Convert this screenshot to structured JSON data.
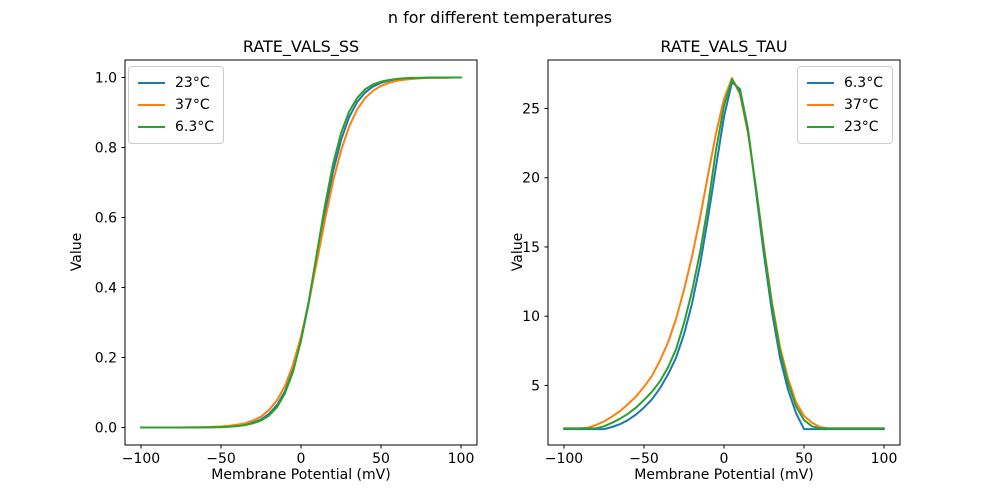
{
  "figure": {
    "suptitle": "n for different temperatures",
    "background": "#ffffff"
  },
  "palette": {
    "blue": "#1f77b4",
    "orange": "#ff7f0e",
    "green": "#2ca02c",
    "axis": "#000000",
    "legend_border": "#cccccc"
  },
  "chart_data": [
    {
      "type": "line",
      "title": "RATE_VALS_SS",
      "xlabel": "Membrane Potential (mV)",
      "ylabel": "Value",
      "xlim": [
        -110,
        110
      ],
      "ylim": [
        -0.05,
        1.05
      ],
      "xticks": [
        -100,
        -50,
        0,
        50,
        100
      ],
      "xtick_labels": [
        "−100",
        "−50",
        "0",
        "50",
        "100"
      ],
      "yticks": [
        0.0,
        0.2,
        0.4,
        0.6,
        0.8,
        1.0
      ],
      "ytick_labels": [
        "0.0",
        "0.2",
        "0.4",
        "0.6",
        "0.8",
        "1.0"
      ],
      "grid": false,
      "legend_position": "upper-left",
      "x": [
        -100,
        -95,
        -90,
        -85,
        -80,
        -75,
        -70,
        -65,
        -60,
        -55,
        -50,
        -45,
        -40,
        -35,
        -30,
        -25,
        -20,
        -15,
        -10,
        -5,
        0,
        5,
        10,
        15,
        20,
        25,
        30,
        35,
        40,
        45,
        50,
        55,
        60,
        65,
        70,
        75,
        80,
        85,
        90,
        95,
        100
      ],
      "series": [
        {
          "name": "23°C",
          "color": "#1f77b4",
          "values": [
            0.0,
            0.0,
            0.0,
            0.0,
            0.0,
            0.0,
            0.0,
            0.0,
            0.001,
            0.001,
            0.002,
            0.003,
            0.005,
            0.008,
            0.014,
            0.023,
            0.039,
            0.064,
            0.104,
            0.164,
            0.249,
            0.359,
            0.487,
            0.616,
            0.731,
            0.821,
            0.886,
            0.929,
            0.957,
            0.974,
            0.985,
            0.991,
            0.995,
            0.997,
            0.998,
            0.999,
            0.999,
            1.0,
            1.0,
            1.0,
            1.0
          ]
        },
        {
          "name": "37°C",
          "color": "#ff7f0e",
          "values": [
            0.0,
            0.0,
            0.0,
            0.0,
            0.0,
            0.0,
            0.001,
            0.001,
            0.001,
            0.002,
            0.003,
            0.005,
            0.008,
            0.012,
            0.02,
            0.031,
            0.05,
            0.078,
            0.119,
            0.179,
            0.26,
            0.361,
            0.476,
            0.594,
            0.702,
            0.791,
            0.859,
            0.908,
            0.941,
            0.962,
            0.976,
            0.985,
            0.991,
            0.994,
            0.996,
            0.998,
            0.999,
            0.999,
            0.999,
            1.0,
            1.0
          ]
        },
        {
          "name": "6.3°C",
          "color": "#2ca02c",
          "values": [
            0.0,
            0.0,
            0.0,
            0.0,
            0.0,
            0.0,
            0.0,
            0.0,
            0.0,
            0.001,
            0.001,
            0.002,
            0.004,
            0.007,
            0.012,
            0.02,
            0.034,
            0.058,
            0.098,
            0.159,
            0.248,
            0.365,
            0.5,
            0.635,
            0.752,
            0.841,
            0.902,
            0.941,
            0.966,
            0.98,
            0.988,
            0.993,
            0.996,
            0.998,
            0.999,
            0.999,
            1.0,
            1.0,
            1.0,
            1.0,
            1.0
          ]
        }
      ]
    },
    {
      "type": "line",
      "title": "RATE_VALS_TAU",
      "xlabel": "Membrane Potential (mV)",
      "ylabel": "Value",
      "xlim": [
        -110,
        110
      ],
      "ylim": [
        0.7,
        28.5
      ],
      "xticks": [
        -100,
        -50,
        0,
        50,
        100
      ],
      "xtick_labels": [
        "−100",
        "−50",
        "0",
        "50",
        "100"
      ],
      "yticks": [
        5,
        10,
        15,
        20,
        25
      ],
      "ytick_labels": [
        "5",
        "10",
        "15",
        "20",
        "25"
      ],
      "grid": false,
      "legend_position": "upper-right",
      "x": [
        -100,
        -95,
        -90,
        -85,
        -80,
        -75,
        -70,
        -65,
        -60,
        -55,
        -50,
        -45,
        -40,
        -35,
        -30,
        -25,
        -20,
        -15,
        -10,
        -5,
        0,
        5,
        10,
        15,
        20,
        25,
        30,
        35,
        40,
        45,
        50,
        55,
        60,
        65,
        70,
        75,
        80,
        85,
        90,
        95,
        100
      ],
      "series": [
        {
          "name": "6.3°C",
          "color": "#1f77b4",
          "values": [
            1.85,
            1.85,
            1.85,
            1.85,
            1.85,
            1.85,
            2.0,
            2.2,
            2.5,
            2.9,
            3.4,
            4.0,
            4.8,
            5.8,
            7.0,
            8.7,
            10.9,
            13.7,
            17.1,
            20.8,
            24.4,
            26.9,
            26.4,
            23.5,
            19.0,
            14.4,
            10.3,
            7.0,
            4.7,
            3.0,
            1.85,
            1.85,
            1.85,
            1.85,
            1.85,
            1.85,
            1.85,
            1.85,
            1.85,
            1.85,
            1.85
          ]
        },
        {
          "name": "37°C",
          "color": "#ff7f0e",
          "values": [
            1.9,
            1.9,
            1.9,
            1.95,
            2.15,
            2.4,
            2.75,
            3.15,
            3.65,
            4.2,
            4.9,
            5.7,
            6.8,
            8.1,
            9.8,
            11.9,
            14.3,
            17.1,
            20.2,
            23.2,
            25.7,
            27.2,
            26.0,
            23.2,
            19.3,
            15.0,
            11.0,
            7.8,
            5.5,
            3.8,
            2.8,
            2.3,
            2.0,
            1.9,
            1.9,
            1.9,
            1.9,
            1.9,
            1.9,
            1.9,
            1.9
          ]
        },
        {
          "name": "23°C",
          "color": "#2ca02c",
          "values": [
            1.9,
            1.9,
            1.9,
            1.9,
            1.9,
            2.05,
            2.3,
            2.6,
            2.95,
            3.4,
            3.95,
            4.55,
            5.3,
            6.3,
            7.6,
            9.5,
            11.8,
            14.6,
            18.0,
            22.0,
            25.2,
            27.1,
            26.2,
            23.4,
            19.2,
            14.8,
            10.8,
            7.5,
            5.2,
            3.5,
            2.5,
            2.05,
            1.9,
            1.9,
            1.9,
            1.9,
            1.9,
            1.9,
            1.9,
            1.9,
            1.9
          ]
        }
      ]
    }
  ]
}
